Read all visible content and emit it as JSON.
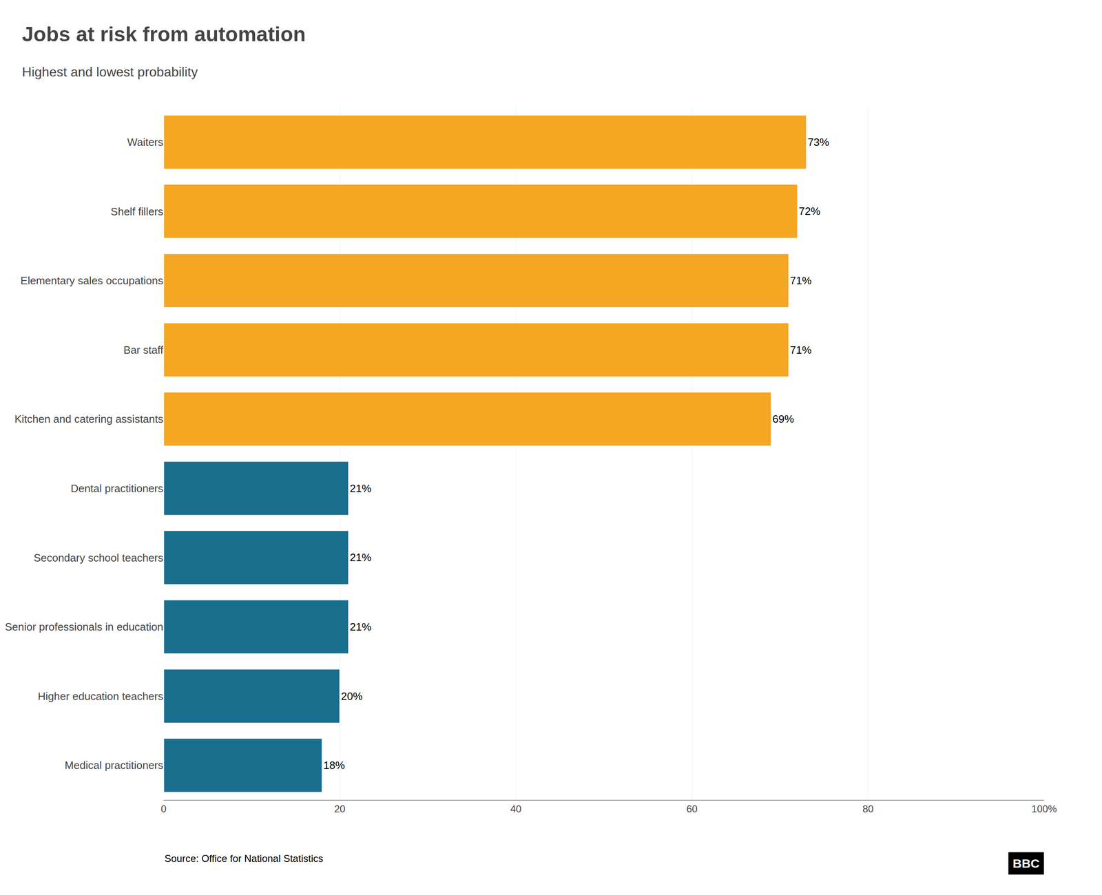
{
  "chart_data": {
    "type": "bar",
    "orientation": "horizontal",
    "title": "Jobs at risk from automation",
    "subtitle": "Highest and lowest probability",
    "categories": [
      "Waiters",
      "Shelf fillers",
      "Elementary sales occupations",
      "Bar staff",
      "Kitchen and catering assistants",
      "Dental practitioners",
      "Secondary school teachers",
      "Senior professionals in education",
      "Higher education teachers",
      "Medical practitioners"
    ],
    "values": [
      73,
      72,
      71,
      71,
      69,
      21,
      21,
      21,
      20,
      18
    ],
    "value_labels": [
      "73%",
      "72%",
      "71%",
      "71%",
      "69%",
      "21%",
      "21%",
      "21%",
      "20%",
      "18%"
    ],
    "data_labels": true,
    "colors": [
      "#F5A623",
      "#F5A623",
      "#F5A623",
      "#F5A623",
      "#F5A623",
      "#1A6E8E",
      "#1A6E8E",
      "#1A6E8E",
      "#1A6E8E",
      "#1A6E8E"
    ],
    "xlim": [
      0,
      100
    ],
    "xticks": [
      0,
      20,
      40,
      60,
      80,
      {
        "value": 100,
        "label": "100%"
      }
    ],
    "grid": true,
    "annotations": [
      "Source: Office for National Statistics",
      "BBC"
    ]
  }
}
